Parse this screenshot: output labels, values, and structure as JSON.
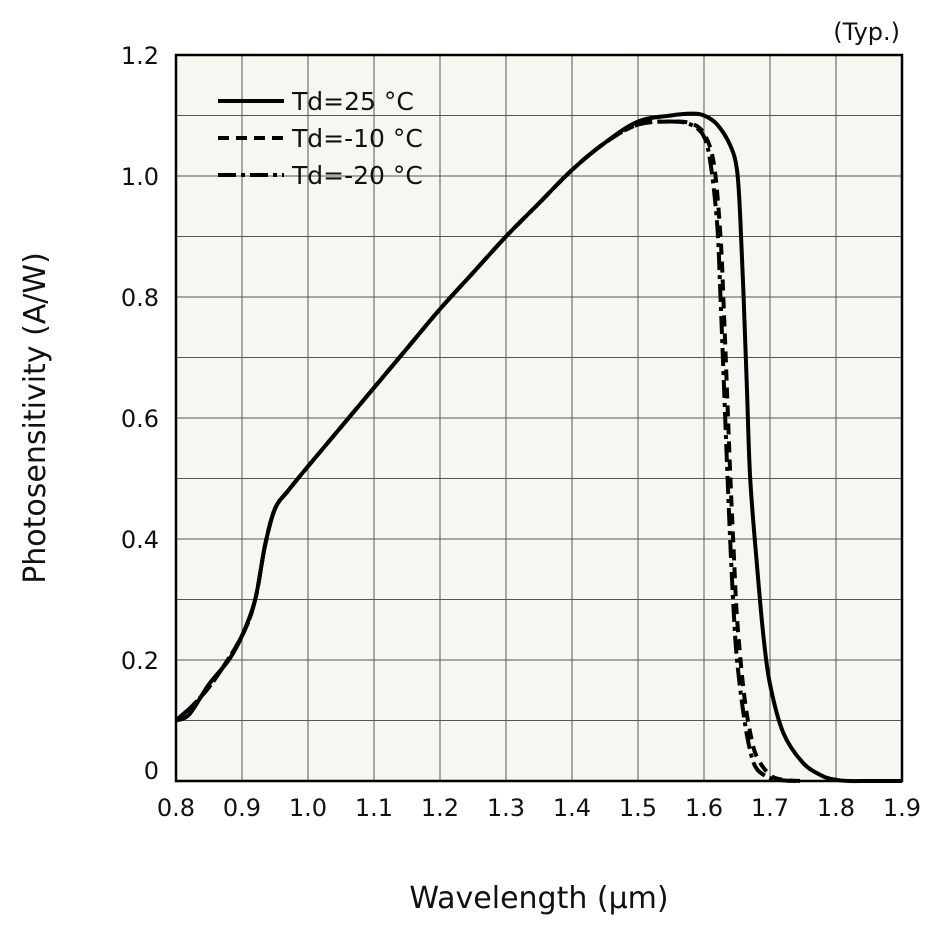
{
  "chart_data": {
    "type": "line",
    "title": "",
    "note": "(Typ.)",
    "xlabel": "Wavelength (μm)",
    "ylabel": "Photosensitivity (A/W)",
    "xlim": [
      0.8,
      1.9
    ],
    "ylim": [
      0,
      1.2
    ],
    "grid": true,
    "legend_position": "top-left",
    "xticks": [
      {
        "value": 0.8,
        "label": "0.8"
      },
      {
        "value": 0.9,
        "label": "0.9"
      },
      {
        "value": 1.0,
        "label": "1.0"
      },
      {
        "value": 1.1,
        "label": "1.1"
      },
      {
        "value": 1.2,
        "label": "1.2"
      },
      {
        "value": 1.3,
        "label": "1.3"
      },
      {
        "value": 1.4,
        "label": "1.4"
      },
      {
        "value": 1.5,
        "label": "1.5"
      },
      {
        "value": 1.6,
        "label": "1.6"
      },
      {
        "value": 1.7,
        "label": "1.7"
      },
      {
        "value": 1.8,
        "label": "1.8"
      },
      {
        "value": 1.9,
        "label": "1.9"
      }
    ],
    "yticks": [
      {
        "value": 0,
        "label": "0"
      },
      {
        "value": 0.2,
        "label": "0.2"
      },
      {
        "value": 0.4,
        "label": "0.4"
      },
      {
        "value": 0.6,
        "label": "0.6"
      },
      {
        "value": 0.8,
        "label": "0.8"
      },
      {
        "value": 1.0,
        "label": "1.0"
      },
      {
        "value": 1.2,
        "label": "1.2"
      }
    ],
    "series": [
      {
        "name": "Td=25 °C",
        "style": "solid",
        "color": "#000000",
        "x": [
          0.8,
          0.82,
          0.85,
          0.88,
          0.9,
          0.92,
          0.935,
          0.95,
          0.97,
          1.0,
          1.05,
          1.1,
          1.15,
          1.2,
          1.25,
          1.3,
          1.35,
          1.4,
          1.45,
          1.5,
          1.55,
          1.58,
          1.6,
          1.62,
          1.64,
          1.65,
          1.655,
          1.66,
          1.665,
          1.67,
          1.68,
          1.69,
          1.7,
          1.72,
          1.75,
          1.78,
          1.8,
          1.82,
          1.85,
          1.9
        ],
        "y": [
          0.1,
          0.11,
          0.16,
          0.2,
          0.24,
          0.3,
          0.39,
          0.45,
          0.48,
          0.52,
          0.585,
          0.65,
          0.715,
          0.78,
          0.84,
          0.9,
          0.955,
          1.01,
          1.055,
          1.09,
          1.1,
          1.103,
          1.1,
          1.085,
          1.05,
          1.01,
          0.93,
          0.8,
          0.65,
          0.5,
          0.36,
          0.24,
          0.16,
          0.08,
          0.03,
          0.008,
          0.002,
          0.0,
          0.0,
          0.0
        ]
      },
      {
        "name": "Td=-10 °C",
        "style": "dashed",
        "color": "#000000",
        "x": [
          0.8,
          0.83,
          0.86,
          0.9,
          0.92,
          0.935,
          0.95,
          0.97,
          1.0,
          1.05,
          1.1,
          1.15,
          1.2,
          1.25,
          1.3,
          1.35,
          1.4,
          1.45,
          1.5,
          1.55,
          1.58,
          1.6,
          1.615,
          1.625,
          1.63,
          1.635,
          1.64,
          1.645,
          1.65,
          1.66,
          1.67,
          1.68,
          1.7,
          1.72,
          1.75
        ],
        "y": [
          0.1,
          0.13,
          0.17,
          0.24,
          0.3,
          0.39,
          0.45,
          0.48,
          0.52,
          0.585,
          0.65,
          0.715,
          0.78,
          0.84,
          0.9,
          0.955,
          1.01,
          1.055,
          1.085,
          1.09,
          1.087,
          1.07,
          1.02,
          0.9,
          0.78,
          0.64,
          0.5,
          0.38,
          0.27,
          0.15,
          0.08,
          0.04,
          0.01,
          0.002,
          0.0
        ]
      },
      {
        "name": "Td=-20 °C",
        "style": "dashdot",
        "color": "#000000",
        "x": [
          0.8,
          0.83,
          0.86,
          0.9,
          0.92,
          0.935,
          0.95,
          0.97,
          1.0,
          1.05,
          1.1,
          1.15,
          1.2,
          1.25,
          1.3,
          1.35,
          1.4,
          1.45,
          1.5,
          1.55,
          1.58,
          1.6,
          1.61,
          1.62,
          1.625,
          1.63,
          1.635,
          1.64,
          1.645,
          1.65,
          1.66,
          1.67,
          1.68,
          1.7,
          1.72,
          1.74
        ],
        "y": [
          0.1,
          0.13,
          0.17,
          0.24,
          0.3,
          0.39,
          0.45,
          0.48,
          0.52,
          0.585,
          0.65,
          0.715,
          0.78,
          0.84,
          0.9,
          0.955,
          1.01,
          1.055,
          1.085,
          1.09,
          1.085,
          1.065,
          1.02,
          0.92,
          0.8,
          0.66,
          0.52,
          0.39,
          0.28,
          0.2,
          0.11,
          0.05,
          0.02,
          0.005,
          0.001,
          0.0
        ]
      }
    ]
  }
}
